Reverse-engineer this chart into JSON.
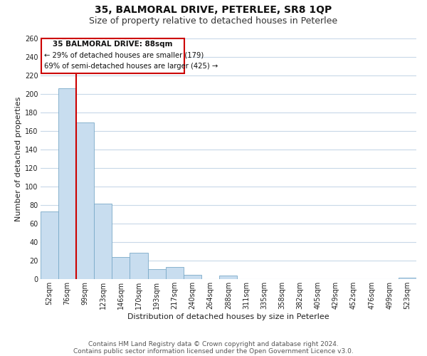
{
  "title": "35, BALMORAL DRIVE, PETERLEE, SR8 1QP",
  "subtitle": "Size of property relative to detached houses in Peterlee",
  "xlabel": "Distribution of detached houses by size in Peterlee",
  "ylabel": "Number of detached properties",
  "bar_labels": [
    "52sqm",
    "76sqm",
    "99sqm",
    "123sqm",
    "146sqm",
    "170sqm",
    "193sqm",
    "217sqm",
    "240sqm",
    "264sqm",
    "288sqm",
    "311sqm",
    "335sqm",
    "358sqm",
    "382sqm",
    "405sqm",
    "429sqm",
    "452sqm",
    "476sqm",
    "499sqm",
    "523sqm"
  ],
  "bar_values": [
    73,
    206,
    169,
    82,
    24,
    29,
    11,
    13,
    5,
    0,
    4,
    0,
    0,
    0,
    0,
    0,
    0,
    0,
    0,
    0,
    2
  ],
  "bar_color": "#c8ddef",
  "bar_edge_color": "#7aaac8",
  "vline_x": 1.5,
  "vline_color": "#cc0000",
  "ylim": [
    0,
    260
  ],
  "yticks": [
    0,
    20,
    40,
    60,
    80,
    100,
    120,
    140,
    160,
    180,
    200,
    220,
    240,
    260
  ],
  "annotation_title": "35 BALMORAL DRIVE: 88sqm",
  "annotation_line1": "← 29% of detached houses are smaller (179)",
  "annotation_line2": "69% of semi-detached houses are larger (425) →",
  "annotation_box_color": "#ffffff",
  "annotation_box_edge": "#cc0000",
  "footer_line1": "Contains HM Land Registry data © Crown copyright and database right 2024.",
  "footer_line2": "Contains public sector information licensed under the Open Government Licence v3.0.",
  "bg_color": "#ffffff",
  "grid_color": "#c8d8e8",
  "title_fontsize": 10,
  "subtitle_fontsize": 9,
  "axis_fontsize": 8,
  "tick_fontsize": 7,
  "footer_fontsize": 6.5
}
